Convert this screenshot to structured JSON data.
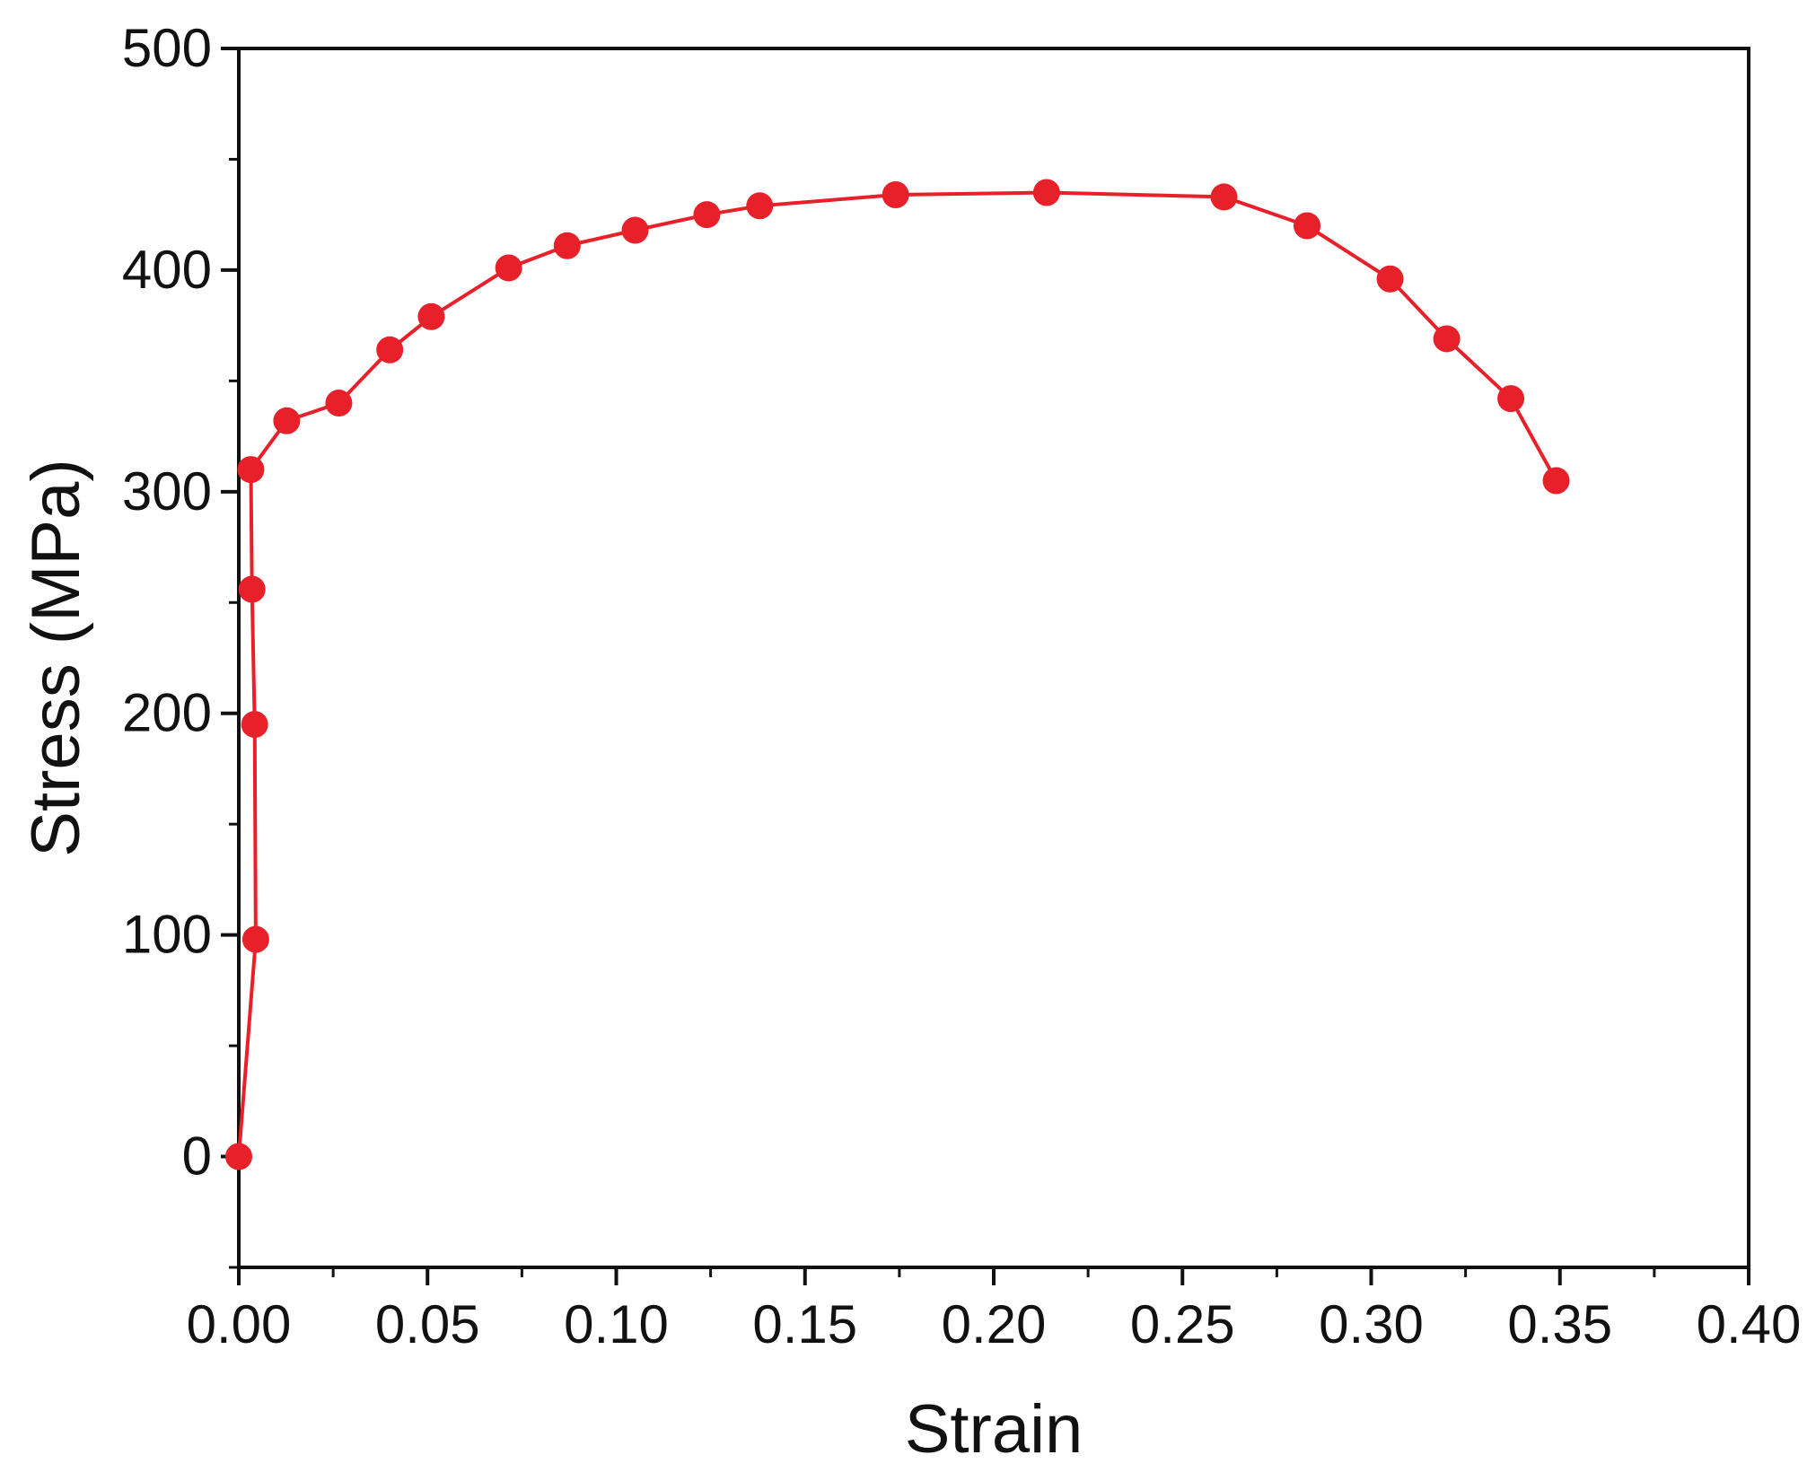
{
  "chart_data": {
    "type": "line",
    "xlabel": "Strain",
    "ylabel": "Stress (MPa)",
    "xlim": [
      0.0,
      0.4
    ],
    "ylim": [
      -50,
      500
    ],
    "x_ticks": [
      "0.00",
      "0.05",
      "0.10",
      "0.15",
      "0.20",
      "0.25",
      "0.30",
      "0.35",
      "0.40"
    ],
    "y_ticks": [
      "0",
      "100",
      "200",
      "300",
      "400",
      "500"
    ],
    "grid": false,
    "legend": "none",
    "colors": {
      "series": "#e8202a",
      "axis": "#111111"
    },
    "series": [
      {
        "x": [
          0.0,
          0.0045,
          0.0042,
          0.0035,
          0.0032,
          0.0127,
          0.0265,
          0.04,
          0.051,
          0.0715,
          0.087,
          0.105,
          0.124,
          0.138,
          0.174,
          0.214,
          0.261,
          0.283,
          0.305,
          0.32,
          0.337,
          0.349
        ],
        "y": [
          0,
          98,
          195,
          256,
          310,
          332,
          340,
          364,
          379,
          401,
          411,
          418,
          425,
          429,
          434,
          435,
          433,
          420,
          396,
          369,
          342,
          305
        ]
      }
    ]
  }
}
